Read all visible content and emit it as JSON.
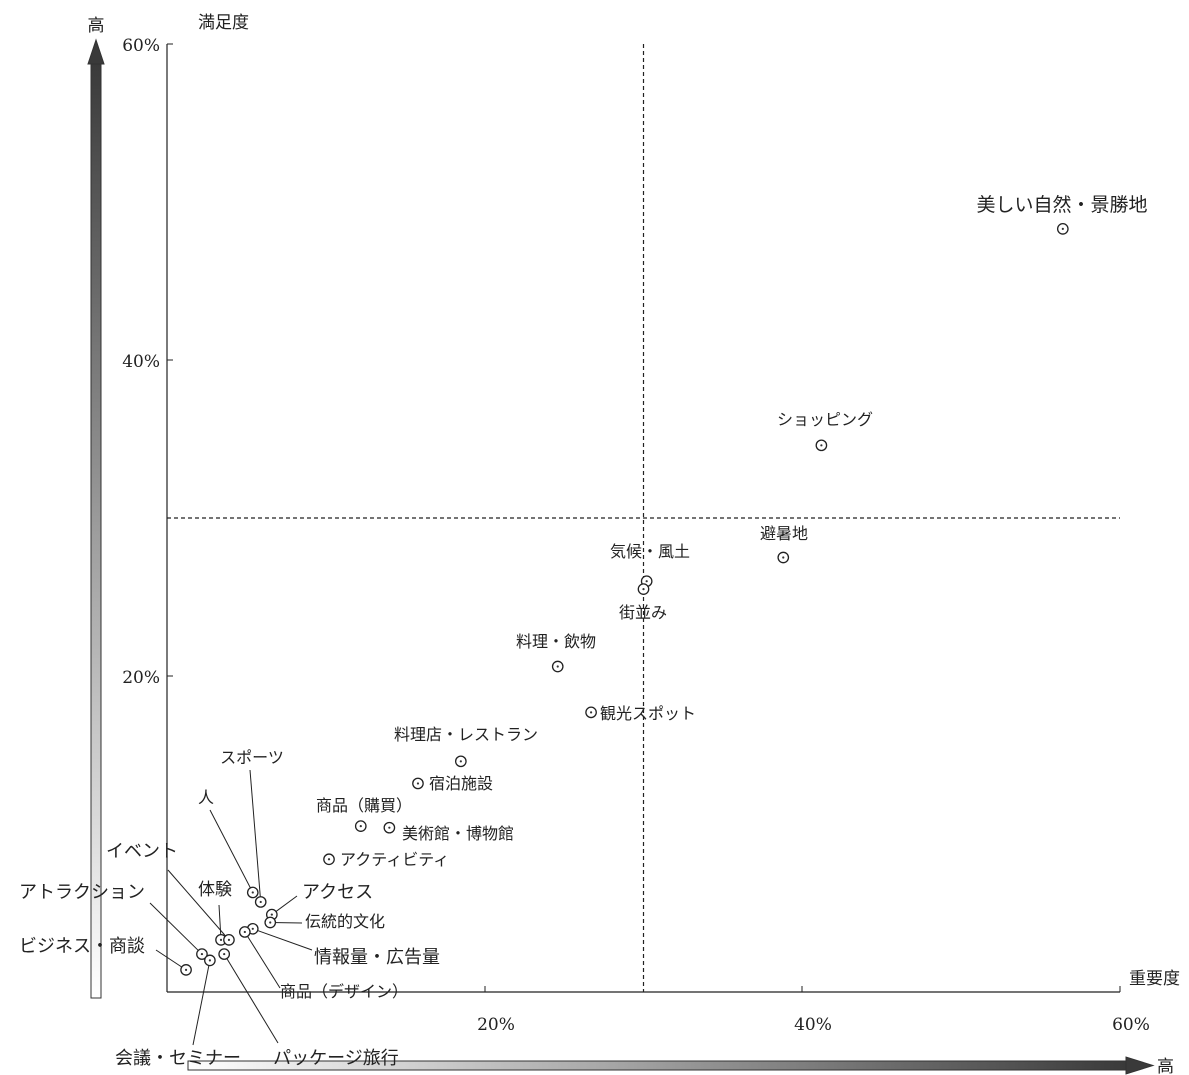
{
  "chart_data": {
    "type": "scatter",
    "title": "",
    "xlabel": "重要度",
    "ylabel": "満足度",
    "xlim": [
      0,
      60
    ],
    "ylim": [
      0,
      60
    ],
    "x_ticks": [
      "20%",
      "40%",
      "60%"
    ],
    "y_ticks": [
      "20%",
      "40%",
      "60%"
    ],
    "reference_lines": {
      "x": 30,
      "y": 30
    },
    "gradient_arrow_label_x": "高",
    "gradient_arrow_label_y": "高",
    "points": [
      {
        "label": "美しい自然・景勝地",
        "x": 56.4,
        "y": 48.3
      },
      {
        "label": "ショッピング",
        "x": 41.2,
        "y": 34.6
      },
      {
        "label": "避暑地",
        "x": 38.8,
        "y": 27.5
      },
      {
        "label": "気候・風土",
        "x": 30.2,
        "y": 26.0
      },
      {
        "label": "街並み",
        "x": 30.0,
        "y": 25.5
      },
      {
        "label": "料理・飲物",
        "x": 24.6,
        "y": 20.6
      },
      {
        "label": "観光スポット",
        "x": 26.7,
        "y": 17.7
      },
      {
        "label": "料理店・レストラン",
        "x": 18.5,
        "y": 14.6
      },
      {
        "label": "宿泊施設",
        "x": 15.8,
        "y": 13.2
      },
      {
        "label": "商品（購買）",
        "x": 12.2,
        "y": 10.5
      },
      {
        "label": "美術館・博物館",
        "x": 14.0,
        "y": 10.4
      },
      {
        "label": "アクティビティ",
        "x": 10.2,
        "y": 8.4
      },
      {
        "label": "スポーツ",
        "x": 5.9,
        "y": 5.7
      },
      {
        "label": "人",
        "x": 5.4,
        "y": 6.3
      },
      {
        "label": "アクセス",
        "x": 6.6,
        "y": 4.9
      },
      {
        "label": "伝統的文化",
        "x": 6.5,
        "y": 4.4
      },
      {
        "label": "体験",
        "x": 3.4,
        "y": 3.3
      },
      {
        "label": "イベント",
        "x": 3.9,
        "y": 3.3
      },
      {
        "label": "情報量・広告量",
        "x": 5.4,
        "y": 4.0
      },
      {
        "label": "商品（デザイン）",
        "x": 4.9,
        "y": 3.8
      },
      {
        "label": "パッケージ旅行",
        "x": 3.6,
        "y": 2.4
      },
      {
        "label": "アトラクション",
        "x": 2.2,
        "y": 2.4
      },
      {
        "label": "会議・セミナー",
        "x": 2.7,
        "y": 2.0
      },
      {
        "label": "ビジネス・商談",
        "x": 1.2,
        "y": 1.4
      }
    ]
  }
}
